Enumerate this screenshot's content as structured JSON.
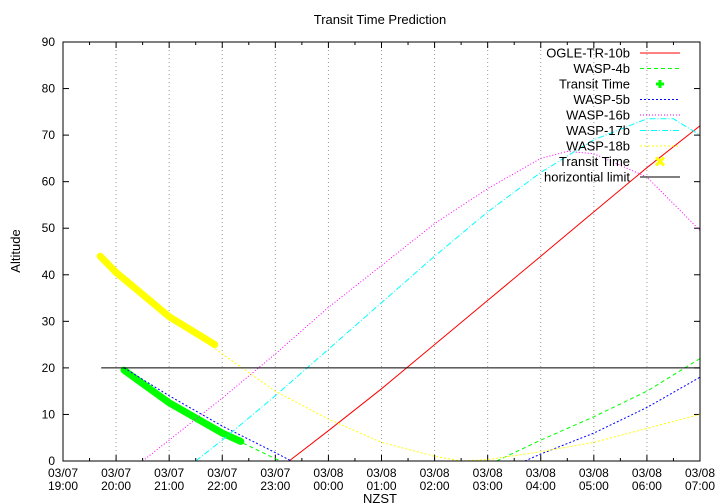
{
  "chart_data": {
    "type": "line",
    "title": "Transit Time Prediction",
    "xlabel": "NZST",
    "ylabel": "Altitude",
    "ylim": [
      0,
      90
    ],
    "yticks": [
      0,
      10,
      20,
      30,
      40,
      50,
      60,
      70,
      80,
      90
    ],
    "xlim_hours_from_start": [
      0,
      12
    ],
    "xticks": [
      [
        "03/07",
        "19:00"
      ],
      [
        "03/07",
        "20:00"
      ],
      [
        "03/07",
        "21:00"
      ],
      [
        "03/07",
        "22:00"
      ],
      [
        "03/07",
        "23:00"
      ],
      [
        "03/08",
        "00:00"
      ],
      [
        "03/08",
        "01:00"
      ],
      [
        "03/08",
        "02:00"
      ],
      [
        "03/08",
        "03:00"
      ],
      [
        "03/08",
        "04:00"
      ],
      [
        "03/08",
        "05:00"
      ],
      [
        "03/08",
        "06:00"
      ],
      [
        "03/08",
        "07:00"
      ]
    ],
    "legend_position": "top-right",
    "series": [
      {
        "name": "OGLE-TR-10b",
        "color": "#ff0000",
        "style": "solid",
        "points": [
          [
            [
              4.26,
              0
            ],
            [
              5,
              6.5
            ],
            [
              6,
              15.5
            ],
            [
              7,
              25
            ],
            [
              8,
              34.5
            ],
            [
              9,
              44
            ],
            [
              10,
              53.5
            ],
            [
              11,
              63
            ],
            [
              12,
              72
            ]
          ]
        ]
      },
      {
        "name": "WASP-4b",
        "color": "#00ff00",
        "style": "dash",
        "points": [
          [
            [
              1.15,
              19.5
            ],
            [
              2,
              12.5
            ],
            [
              3,
              6
            ],
            [
              4,
              0.5
            ],
            [
              4.1,
              0
            ]
          ],
          [
            [
              8.17,
              0
            ],
            [
              9,
              4.5
            ],
            [
              10,
              9.5
            ],
            [
              11,
              15
            ],
            [
              12,
              22
            ]
          ]
        ]
      },
      {
        "name": "Transit Time",
        "color": "#00ff00",
        "style": "thick",
        "marker": "plus",
        "points": [
          [
            [
              1.15,
              19.5
            ],
            [
              2,
              12.5
            ],
            [
              3,
              6
            ],
            [
              3.35,
              4.2
            ]
          ]
        ]
      },
      {
        "name": "WASP-5b",
        "color": "#0000ff",
        "style": "dot",
        "points": [
          [
            [
              1.15,
              20
            ],
            [
              2,
              14
            ],
            [
              3,
              7.5
            ],
            [
              4,
              1.8
            ],
            [
              4.3,
              0
            ]
          ],
          [
            [
              8.7,
              0
            ],
            [
              9,
              1.5
            ],
            [
              10,
              6
            ],
            [
              11,
              11.5
            ],
            [
              12,
              18
            ]
          ]
        ]
      },
      {
        "name": "WASP-16b",
        "color": "#ff00ff",
        "style": "dot2",
        "points": [
          [
            [
              1.5,
              0
            ],
            [
              2,
              4.5
            ],
            [
              3,
              13.5
            ],
            [
              4,
              23
            ],
            [
              5,
              33
            ],
            [
              6,
              42
            ],
            [
              7,
              51
            ],
            [
              8,
              58.5
            ],
            [
              9,
              65
            ],
            [
              9.5,
              66.5
            ],
            [
              10,
              66
            ],
            [
              11,
              61
            ],
            [
              12,
              49.5
            ]
          ]
        ]
      },
      {
        "name": "WASP-17b",
        "color": "#00ffff",
        "style": "dashdot",
        "points": [
          [
            [
              2.5,
              0
            ],
            [
              3,
              4.5
            ],
            [
              4,
              14
            ],
            [
              5,
              24
            ],
            [
              6,
              34
            ],
            [
              7,
              44
            ],
            [
              8,
              53.5
            ],
            [
              9,
              62
            ],
            [
              10,
              69
            ],
            [
              11,
              73.5
            ],
            [
              11.5,
              73.5
            ],
            [
              12,
              70
            ]
          ]
        ]
      },
      {
        "name": "WASP-18b",
        "color": "#ffff00",
        "style": "dot",
        "points": [
          [
            [
              0.7,
              44
            ],
            [
              1,
              40.5
            ],
            [
              2,
              31
            ],
            [
              3,
              23
            ],
            [
              4,
              15
            ],
            [
              5,
              9
            ],
            [
              6,
              4
            ],
            [
              7,
              1
            ],
            [
              7.5,
              0
            ],
            [
              8,
              0.3
            ],
            [
              9,
              2
            ],
            [
              10,
              4
            ],
            [
              11,
              7
            ],
            [
              12,
              10
            ]
          ]
        ]
      },
      {
        "name": "Transit Time",
        "color": "#ffff00",
        "style": "thick",
        "marker": "cross",
        "points": [
          [
            [
              0.7,
              44
            ],
            [
              1,
              40.5
            ],
            [
              2,
              31
            ],
            [
              2.86,
              25
            ]
          ]
        ]
      },
      {
        "name": "horizontial limit",
        "color": "#000000",
        "style": "solid",
        "points": [
          [
            [
              0.72,
              20
            ],
            [
              12,
              20
            ]
          ]
        ]
      }
    ]
  }
}
